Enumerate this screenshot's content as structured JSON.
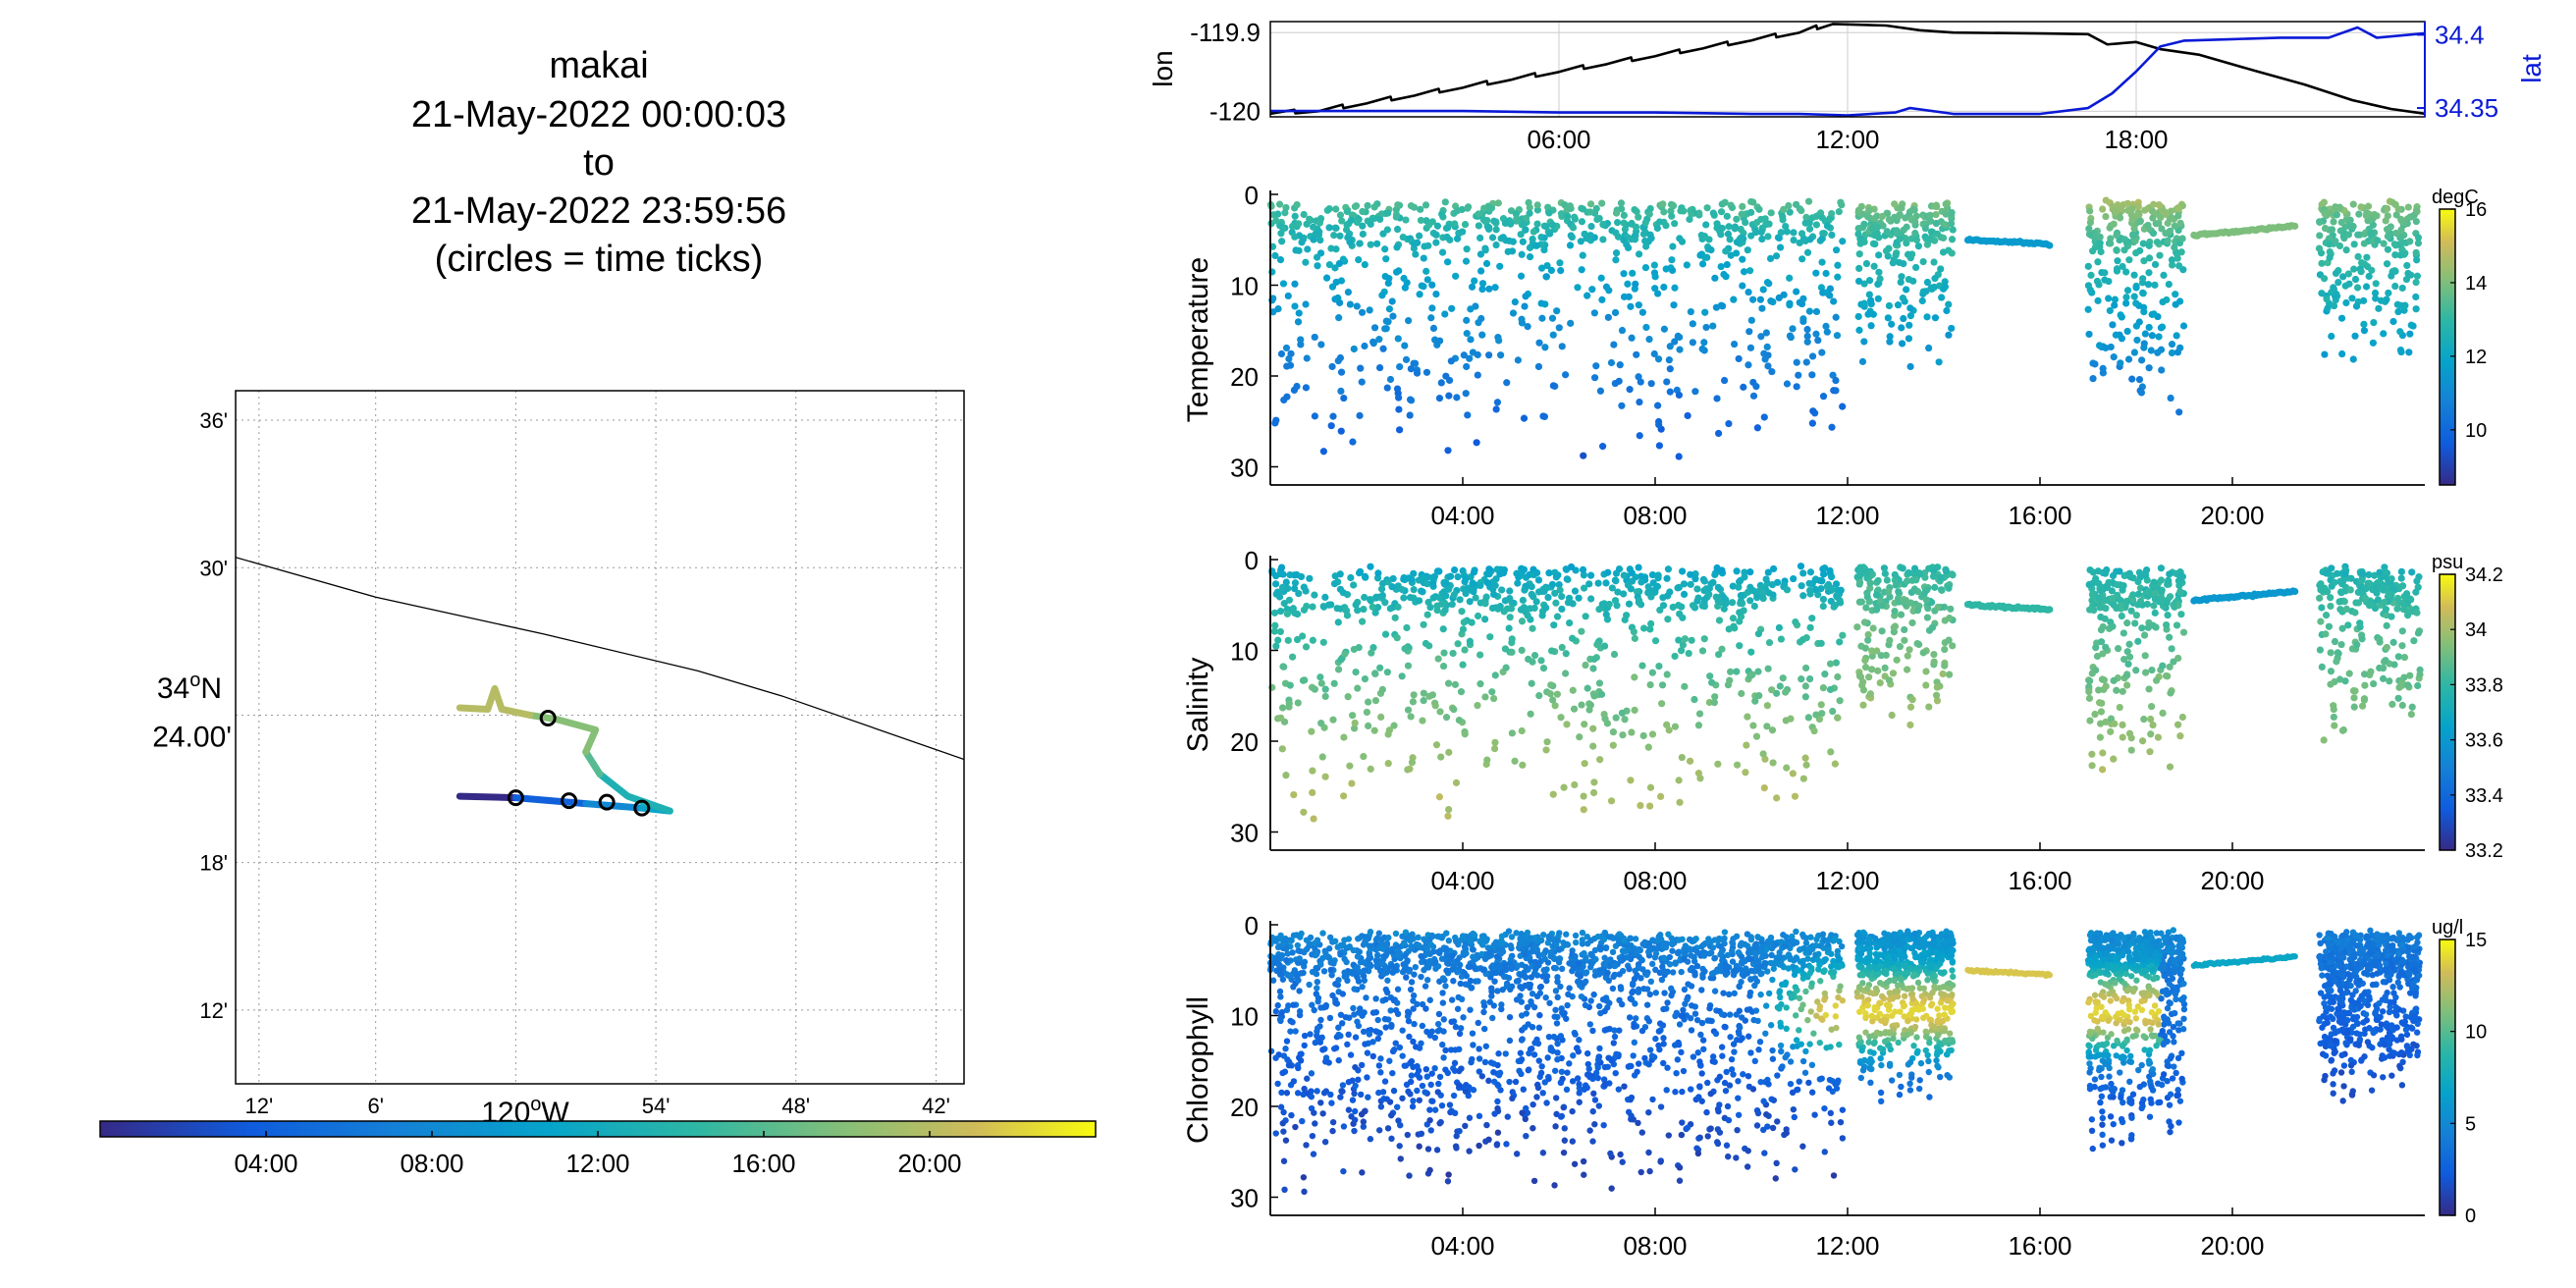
{
  "title_block": {
    "line1": "makai",
    "line2": "21-May-2022 00:00:03",
    "line3": "to",
    "line4": "21-May-2022 23:59:56",
    "line5": "(circles = time ticks)"
  },
  "chart_data": [
    {
      "id": "map",
      "type": "line",
      "xlim": [
        -120.2,
        -119.68
      ],
      "ylim": [
        34.15,
        34.62
      ],
      "x_tick_labels": [
        "12'",
        "6'",
        "120°W",
        "54'",
        "48'",
        "42'"
      ],
      "x_axis_label": "120",
      "x_axis_label_sup": "o",
      "x_axis_label_suffix": "W",
      "y_tick_labels": [
        "12'",
        "18'",
        "24.00'",
        "30'",
        "36'"
      ],
      "y_axis_label": "34",
      "y_axis_label_sup": "o",
      "y_axis_label_suffix": "N",
      "grid": true,
      "coastline": [
        [
          -120.2,
          34.507
        ],
        [
          -120.1,
          34.48
        ],
        [
          -119.98,
          34.455
        ],
        [
          -119.87,
          34.43
        ],
        [
          -119.81,
          34.413
        ],
        [
          -119.68,
          34.37
        ]
      ],
      "track_colored_by": "time",
      "track_segments": [
        {
          "time": "00:00",
          "points": [
            [
              -120.04,
              34.345
            ],
            [
              -120.0,
              34.344
            ]
          ]
        },
        {
          "time": "04:00",
          "points": [
            [
              -120.0,
              34.344
            ],
            [
              -119.95,
              34.34
            ]
          ]
        },
        {
          "time": "08:00",
          "points": [
            [
              -119.95,
              34.34
            ],
            [
              -119.91,
              34.337
            ]
          ]
        },
        {
          "time": "11:00",
          "points": [
            [
              -119.91,
              34.337
            ],
            [
              -119.89,
              34.335
            ]
          ]
        },
        {
          "time": "13:00",
          "points": [
            [
              -119.89,
              34.335
            ],
            [
              -119.92,
              34.345
            ],
            [
              -119.94,
              34.36
            ]
          ]
        },
        {
          "time": "16:00",
          "points": [
            [
              -119.94,
              34.36
            ],
            [
              -119.95,
              34.375
            ]
          ]
        },
        {
          "time": "18:00",
          "points": [
            [
              -119.95,
              34.375
            ],
            [
              -119.943,
              34.39
            ],
            [
              -119.97,
              34.397
            ],
            [
              -119.99,
              34.4
            ]
          ]
        },
        {
          "time": "20:00",
          "points": [
            [
              -119.99,
              34.4
            ],
            [
              -120.01,
              34.404
            ],
            [
              -120.015,
              34.418
            ],
            [
              -120.02,
              34.404
            ],
            [
              -120.04,
              34.405
            ]
          ]
        }
      ],
      "time_tick_circles": [
        [
          -119.977,
          34.398
        ],
        [
          -120.0,
          34.344
        ],
        [
          -119.962,
          34.342
        ],
        [
          -119.935,
          34.341
        ],
        [
          -119.91,
          34.337
        ]
      ]
    },
    {
      "id": "lonlat",
      "type": "line",
      "x_range_hours": [
        0,
        24
      ],
      "x_tick_labels": [
        "06:00",
        "12:00",
        "18:00"
      ],
      "left_axis": {
        "label": "lon",
        "ylim": [
          -120.007,
          -119.886
        ],
        "tick_labels": [
          "-119.9",
          "-120"
        ],
        "tick_values": [
          -119.9,
          -120.0
        ]
      },
      "right_axis": {
        "label": "lat",
        "ylim": [
          34.344,
          34.409
        ],
        "tick_labels": [
          "34.4",
          "34.35"
        ],
        "tick_values": [
          34.4,
          34.35
        ]
      },
      "series": [
        {
          "axis": "left",
          "color": "#000000",
          "points": [
            [
              0,
              -120.003
            ],
            [
              1,
              -120.0
            ],
            [
              2,
              -119.99
            ],
            [
              3,
              -119.98
            ],
            [
              4,
              -119.97
            ],
            [
              5,
              -119.96
            ],
            [
              6,
              -119.95
            ],
            [
              7,
              -119.94
            ],
            [
              8,
              -119.93
            ],
            [
              9,
              -119.92
            ],
            [
              10,
              -119.91
            ],
            [
              11,
              -119.9
            ],
            [
              11.7,
              -119.889
            ],
            [
              12.8,
              -119.891
            ],
            [
              13.5,
              -119.897
            ],
            [
              14.2,
              -119.9
            ],
            [
              16,
              -119.901
            ],
            [
              17,
              -119.902
            ],
            [
              17.4,
              -119.915
            ],
            [
              18,
              -119.912
            ],
            [
              18.5,
              -119.921
            ],
            [
              19.3,
              -119.928
            ],
            [
              20.5,
              -119.949
            ],
            [
              21.5,
              -119.966
            ],
            [
              22.5,
              -119.986
            ],
            [
              23.3,
              -119.997
            ],
            [
              24,
              -120.003
            ]
          ]
        },
        {
          "axis": "right",
          "color": "#0a1ad6",
          "points": [
            [
              0,
              34.348
            ],
            [
              2,
              34.348
            ],
            [
              4,
              34.348
            ],
            [
              6,
              34.347
            ],
            [
              8,
              34.347
            ],
            [
              10,
              34.346
            ],
            [
              11,
              34.346
            ],
            [
              12,
              34.345
            ],
            [
              13,
              34.347
            ],
            [
              13.3,
              34.35
            ],
            [
              14.2,
              34.346
            ],
            [
              16,
              34.346
            ],
            [
              17,
              34.35
            ],
            [
              17.5,
              34.36
            ],
            [
              18,
              34.375
            ],
            [
              18.5,
              34.392
            ],
            [
              19,
              34.396
            ],
            [
              20,
              34.397
            ],
            [
              21,
              34.398
            ],
            [
              22,
              34.398
            ],
            [
              22.6,
              34.405
            ],
            [
              23,
              34.398
            ],
            [
              24,
              34.401
            ]
          ]
        }
      ]
    },
    {
      "id": "temperature",
      "type": "scatter",
      "ylabel": "Temperature",
      "y_reversed": true,
      "ylim": [
        0,
        32
      ],
      "y_tick_labels": [
        "0",
        "10",
        "20",
        "30"
      ],
      "x_range_hours": [
        0,
        24
      ],
      "x_tick_labels": [
        "04:00",
        "08:00",
        "12:00",
        "16:00",
        "20:00"
      ],
      "colorbar": {
        "label": "degC",
        "range": [
          8.5,
          16
        ],
        "tick_labels": [
          "10",
          "12",
          "14",
          "16"
        ],
        "tick_values": [
          10,
          12,
          14,
          16
        ]
      },
      "dives": [
        {
          "start": 0.0,
          "end": 11.9,
          "max_depth": 30,
          "surface_value": 14.0,
          "deep_value": 9.6,
          "n": 900
        },
        {
          "start": 12.2,
          "end": 14.2,
          "max_depth": 20,
          "surface_value": 14.5,
          "deep_value": 11.2,
          "n": 220
        },
        {
          "start": 17.0,
          "end": 19.0,
          "max_depth": 25,
          "surface_value": 15.2,
          "deep_value": 10.2,
          "n": 260
        },
        {
          "start": 21.8,
          "end": 23.9,
          "max_depth": 20,
          "surface_value": 14.6,
          "deep_value": 11.5,
          "n": 240
        }
      ],
      "surface_track": [
        {
          "start": 14.5,
          "end": 16.2,
          "depth_start": 5,
          "depth_end": 5.5,
          "value": 11.6
        },
        {
          "start": 19.2,
          "end": 21.3,
          "depth_start": 4.5,
          "depth_end": 3.5,
          "value": 14.0
        }
      ]
    },
    {
      "id": "salinity",
      "type": "scatter",
      "ylabel": "Salinity",
      "y_reversed": true,
      "ylim": [
        0,
        32
      ],
      "y_tick_labels": [
        "0",
        "10",
        "20",
        "30"
      ],
      "x_range_hours": [
        0,
        24
      ],
      "x_tick_labels": [
        "04:00",
        "08:00",
        "12:00",
        "16:00",
        "20:00"
      ],
      "colorbar": {
        "label": "psu",
        "range": [
          33.2,
          34.2
        ],
        "tick_labels": [
          "33.2",
          "33.4",
          "33.6",
          "33.8",
          "34",
          "34.2"
        ],
        "tick_values": [
          33.2,
          33.4,
          33.6,
          33.8,
          34.0,
          34.2
        ]
      },
      "dives": [
        {
          "start": 0.0,
          "end": 11.9,
          "max_depth": 30,
          "surface_value": 33.6,
          "deep_value": 34.05,
          "n": 900
        },
        {
          "start": 12.2,
          "end": 14.2,
          "max_depth": 20,
          "surface_value": 33.75,
          "deep_value": 34.0,
          "n": 220
        },
        {
          "start": 17.0,
          "end": 19.0,
          "max_depth": 25,
          "surface_value": 33.7,
          "deep_value": 34.0,
          "n": 260
        },
        {
          "start": 21.8,
          "end": 23.9,
          "max_depth": 20,
          "surface_value": 33.7,
          "deep_value": 33.95,
          "n": 240
        }
      ],
      "surface_track": [
        {
          "start": 14.5,
          "end": 16.2,
          "depth_start": 5,
          "depth_end": 5.5,
          "value": 33.8
        },
        {
          "start": 19.2,
          "end": 21.3,
          "depth_start": 4.5,
          "depth_end": 3.5,
          "value": 33.6
        }
      ]
    },
    {
      "id": "chlorophyll",
      "type": "scatter",
      "ylabel": "Chlorophyll",
      "y_reversed": true,
      "ylim": [
        0,
        32
      ],
      "y_tick_labels": [
        "0",
        "10",
        "20",
        "30"
      ],
      "x_range_hours": [
        0,
        24
      ],
      "x_tick_labels": [
        "04:00",
        "08:00",
        "12:00",
        "16:00",
        "20:00"
      ],
      "colorbar": {
        "label": "ug/l",
        "range": [
          0,
          15
        ],
        "tick_labels": [
          "0",
          "5",
          "10",
          "15"
        ],
        "tick_values": [
          0,
          5,
          10,
          15
        ]
      },
      "dives": [
        {
          "start": 0.0,
          "end": 11.9,
          "max_depth": 30,
          "surface_value": 5.5,
          "deep_value": 1.0,
          "n": 2200
        },
        {
          "start": 12.2,
          "end": 14.2,
          "max_depth": 20,
          "surface_value": 6.0,
          "deep_value": 3.0,
          "n": 700
        },
        {
          "start": 17.0,
          "end": 19.0,
          "max_depth": 25,
          "surface_value": 5.5,
          "deep_value": 2.0,
          "n": 750
        },
        {
          "start": 21.8,
          "end": 23.9,
          "max_depth": 20,
          "surface_value": 5.0,
          "deep_value": 1.5,
          "n": 700
        }
      ],
      "bloom": {
        "start": 10.0,
        "end": 18.5,
        "depth_center": 9.5,
        "depth_spread": 4.5,
        "value": 14.0
      },
      "surface_track": [
        {
          "start": 14.5,
          "end": 16.2,
          "depth_start": 5,
          "depth_end": 5.5,
          "value": 13.5
        },
        {
          "start": 19.2,
          "end": 21.3,
          "depth_start": 4.5,
          "depth_end": 3.5,
          "value": 7.0
        }
      ]
    }
  ],
  "time_colorbar": {
    "range_hours": [
      0,
      24
    ],
    "tick_labels": [
      "04:00",
      "08:00",
      "12:00",
      "16:00",
      "20:00"
    ],
    "tick_values": [
      4,
      8,
      12,
      16,
      20
    ]
  }
}
